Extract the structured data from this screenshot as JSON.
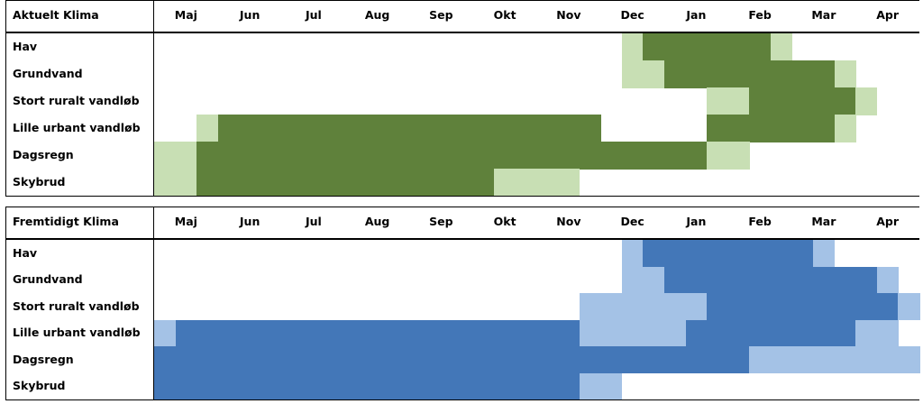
{
  "colors": {
    "current_dark": "#5f813b",
    "current_light": "#c8dfb4",
    "future_dark": "#4377b8",
    "future_light": "#a4c2e6"
  },
  "months": [
    "Maj",
    "Jun",
    "Jul",
    "Aug",
    "Sep",
    "Okt",
    "Nov",
    "Dec",
    "Jan",
    "Feb",
    "Mar",
    "Apr"
  ],
  "chart_data": [
    {
      "type": "heatmap",
      "title": "Aktuelt Klima",
      "x": [
        "Maj",
        "Jun",
        "Jul",
        "Aug",
        "Sep",
        "Okt",
        "Nov",
        "Dec",
        "Jan",
        "Feb",
        "Mar",
        "Apr"
      ],
      "levels": {
        "0": "none",
        "1": "light",
        "2": "dark"
      },
      "rows": [
        {
          "name": "Hav",
          "values": [
            0,
            0,
            0,
            0,
            0,
            0,
            0,
            0,
            0,
            0,
            0,
            0,
            0,
            0,
            0,
            0,
            0,
            0,
            0,
            0,
            0,
            0,
            1,
            2,
            2,
            2,
            2,
            2,
            2,
            1,
            0,
            0,
            0,
            0,
            0,
            0
          ]
        },
        {
          "name": "Grundvand",
          "values": [
            0,
            0,
            0,
            0,
            0,
            0,
            0,
            0,
            0,
            0,
            0,
            0,
            0,
            0,
            0,
            0,
            0,
            0,
            0,
            0,
            0,
            0,
            1,
            1,
            2,
            2,
            2,
            2,
            2,
            2,
            2,
            2,
            1,
            0,
            0,
            0
          ]
        },
        {
          "name": "Stort ruralt vandløb",
          "values": [
            0,
            0,
            0,
            0,
            0,
            0,
            0,
            0,
            0,
            0,
            0,
            0,
            0,
            0,
            0,
            0,
            0,
            0,
            0,
            0,
            0,
            0,
            0,
            0,
            0,
            0,
            1,
            1,
            2,
            2,
            2,
            2,
            2,
            1,
            0,
            0
          ]
        },
        {
          "name": "Lille urbant vandløb",
          "values": [
            0,
            0,
            1,
            2,
            2,
            2,
            2,
            2,
            2,
            2,
            2,
            2,
            2,
            2,
            2,
            2,
            2,
            2,
            2,
            2,
            2,
            0,
            0,
            0,
            0,
            0,
            2,
            2,
            2,
            2,
            2,
            2,
            1,
            0,
            0,
            0
          ]
        },
        {
          "name": "Dagsregn",
          "values": [
            1,
            1,
            2,
            2,
            2,
            2,
            2,
            2,
            2,
            2,
            2,
            2,
            2,
            2,
            2,
            2,
            2,
            2,
            2,
            2,
            2,
            2,
            2,
            2,
            2,
            2,
            1,
            1,
            0,
            0,
            0,
            0,
            0,
            0,
            0,
            0
          ]
        },
        {
          "name": "Skybrud",
          "values": [
            1,
            1,
            2,
            2,
            2,
            2,
            2,
            2,
            2,
            2,
            2,
            2,
            2,
            2,
            2,
            2,
            1,
            1,
            1,
            1,
            0,
            0,
            0,
            0,
            0,
            0,
            0,
            0,
            0,
            0,
            0,
            0,
            0,
            0,
            0,
            0
          ]
        }
      ]
    },
    {
      "type": "heatmap",
      "title": "Fremtidigt Klima",
      "x": [
        "Maj",
        "Jun",
        "Jul",
        "Aug",
        "Sep",
        "Okt",
        "Nov",
        "Dec",
        "Jan",
        "Feb",
        "Mar",
        "Apr"
      ],
      "levels": {
        "0": "none",
        "1": "light",
        "2": "dark"
      },
      "rows": [
        {
          "name": "Hav",
          "values": [
            0,
            0,
            0,
            0,
            0,
            0,
            0,
            0,
            0,
            0,
            0,
            0,
            0,
            0,
            0,
            0,
            0,
            0,
            0,
            0,
            0,
            0,
            1,
            2,
            2,
            2,
            2,
            2,
            2,
            2,
            2,
            1,
            0,
            0,
            0,
            0
          ]
        },
        {
          "name": "Grundvand",
          "values": [
            0,
            0,
            0,
            0,
            0,
            0,
            0,
            0,
            0,
            0,
            0,
            0,
            0,
            0,
            0,
            0,
            0,
            0,
            0,
            0,
            0,
            0,
            1,
            1,
            2,
            2,
            2,
            2,
            2,
            2,
            2,
            2,
            2,
            2,
            1,
            0
          ]
        },
        {
          "name": "Stort ruralt vandløb",
          "values": [
            0,
            0,
            0,
            0,
            0,
            0,
            0,
            0,
            0,
            0,
            0,
            0,
            0,
            0,
            0,
            0,
            0,
            0,
            0,
            0,
            1,
            1,
            1,
            1,
            1,
            1,
            2,
            2,
            2,
            2,
            2,
            2,
            2,
            2,
            2,
            1
          ]
        },
        {
          "name": "Lille urbant vandløb",
          "values": [
            1,
            2,
            2,
            2,
            2,
            2,
            2,
            2,
            2,
            2,
            2,
            2,
            2,
            2,
            2,
            2,
            2,
            2,
            2,
            2,
            1,
            1,
            1,
            1,
            1,
            2,
            2,
            2,
            2,
            2,
            2,
            2,
            2,
            1,
            1,
            0
          ]
        },
        {
          "name": "Dagsregn",
          "values": [
            2,
            2,
            2,
            2,
            2,
            2,
            2,
            2,
            2,
            2,
            2,
            2,
            2,
            2,
            2,
            2,
            2,
            2,
            2,
            2,
            2,
            2,
            2,
            2,
            2,
            2,
            2,
            2,
            1,
            1,
            1,
            1,
            1,
            1,
            1,
            1
          ]
        },
        {
          "name": "Skybrud",
          "values": [
            2,
            2,
            2,
            2,
            2,
            2,
            2,
            2,
            2,
            2,
            2,
            2,
            2,
            2,
            2,
            2,
            2,
            2,
            2,
            2,
            1,
            1,
            0,
            0,
            0,
            0,
            0,
            0,
            0,
            0,
            0,
            0,
            0,
            0,
            0,
            0
          ]
        }
      ]
    }
  ]
}
